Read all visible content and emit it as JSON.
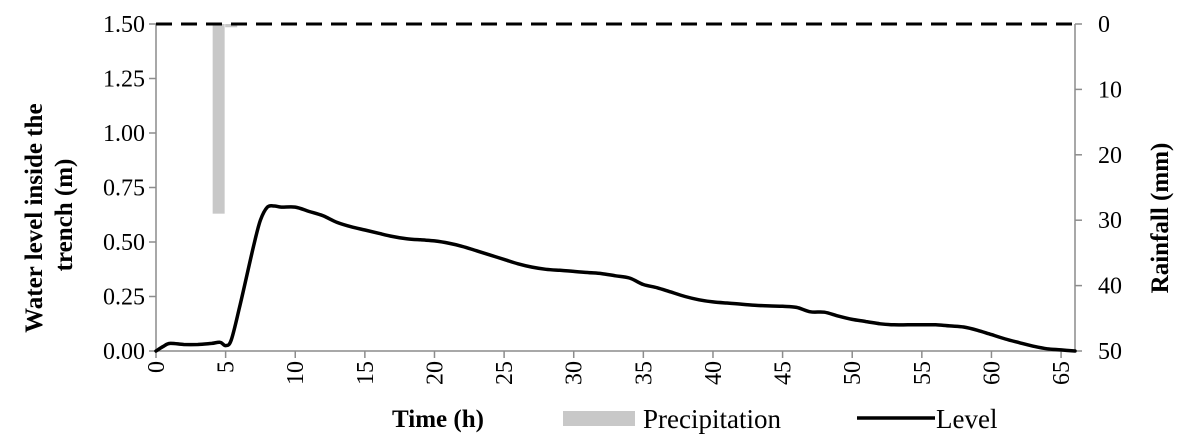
{
  "chart_data": {
    "type": "line",
    "xlabel": "Time (h)",
    "ylabel_lines": [
      "Water level inside the",
      "trench (m)"
    ],
    "y2label": "Rainfall (mm)",
    "xlim": [
      0,
      66
    ],
    "ylim": [
      0,
      1.5
    ],
    "y2lim": [
      0,
      50
    ],
    "y2_inverted": true,
    "x_ticks": [
      "0",
      "5",
      "10",
      "15",
      "20",
      "25",
      "30",
      "35",
      "40",
      "45",
      "50",
      "55",
      "60",
      "65"
    ],
    "y_ticks": [
      "0.00",
      "0.25",
      "0.50",
      "0.75",
      "1.00",
      "1.25",
      "1.50"
    ],
    "y2_ticks": [
      "0",
      "10",
      "20",
      "30",
      "40",
      "50"
    ],
    "grid": false,
    "legend": [
      "Precipitation",
      "Level"
    ],
    "legend_position": "bottom",
    "reference_line": {
      "y": 1.5,
      "style": "dashed"
    },
    "series": [
      {
        "name": "Level",
        "type": "line",
        "color": "#000000",
        "x": [
          0,
          0.5,
          1,
          2,
          3,
          4,
          4.6,
          5,
          5.4,
          6,
          7,
          7.5,
          8,
          8.5,
          9,
          10,
          11,
          12,
          13,
          14,
          15,
          16,
          17,
          18,
          19,
          20,
          21,
          22,
          23,
          24,
          25,
          26,
          27,
          28,
          29,
          30,
          31,
          32,
          33,
          34,
          35,
          36,
          37,
          38,
          39,
          40,
          41,
          42,
          43,
          44,
          45,
          46,
          47,
          48,
          49,
          50,
          51,
          52,
          53,
          54,
          55,
          56,
          57,
          58,
          59,
          60,
          61,
          62,
          63,
          64,
          65,
          66
        ],
        "y": [
          0.0,
          0.02,
          0.035,
          0.03,
          0.03,
          0.035,
          0.04,
          0.025,
          0.05,
          0.2,
          0.48,
          0.6,
          0.66,
          0.665,
          0.66,
          0.66,
          0.64,
          0.62,
          0.59,
          0.57,
          0.555,
          0.54,
          0.525,
          0.515,
          0.51,
          0.505,
          0.495,
          0.48,
          0.46,
          0.44,
          0.42,
          0.4,
          0.385,
          0.375,
          0.37,
          0.365,
          0.36,
          0.355,
          0.345,
          0.335,
          0.305,
          0.29,
          0.27,
          0.25,
          0.235,
          0.225,
          0.22,
          0.215,
          0.21,
          0.207,
          0.205,
          0.2,
          0.18,
          0.178,
          0.16,
          0.145,
          0.135,
          0.125,
          0.12,
          0.12,
          0.12,
          0.12,
          0.115,
          0.11,
          0.095,
          0.075,
          0.055,
          0.038,
          0.022,
          0.01,
          0.005,
          0.0
        ]
      },
      {
        "name": "Precipitation",
        "type": "bar",
        "color": "#c8c8c8",
        "axis": "right",
        "bars": [
          {
            "x": 4.5,
            "rainfall": 29
          },
          {
            "x": 5.4,
            "rainfall": 0.5
          }
        ]
      }
    ]
  }
}
